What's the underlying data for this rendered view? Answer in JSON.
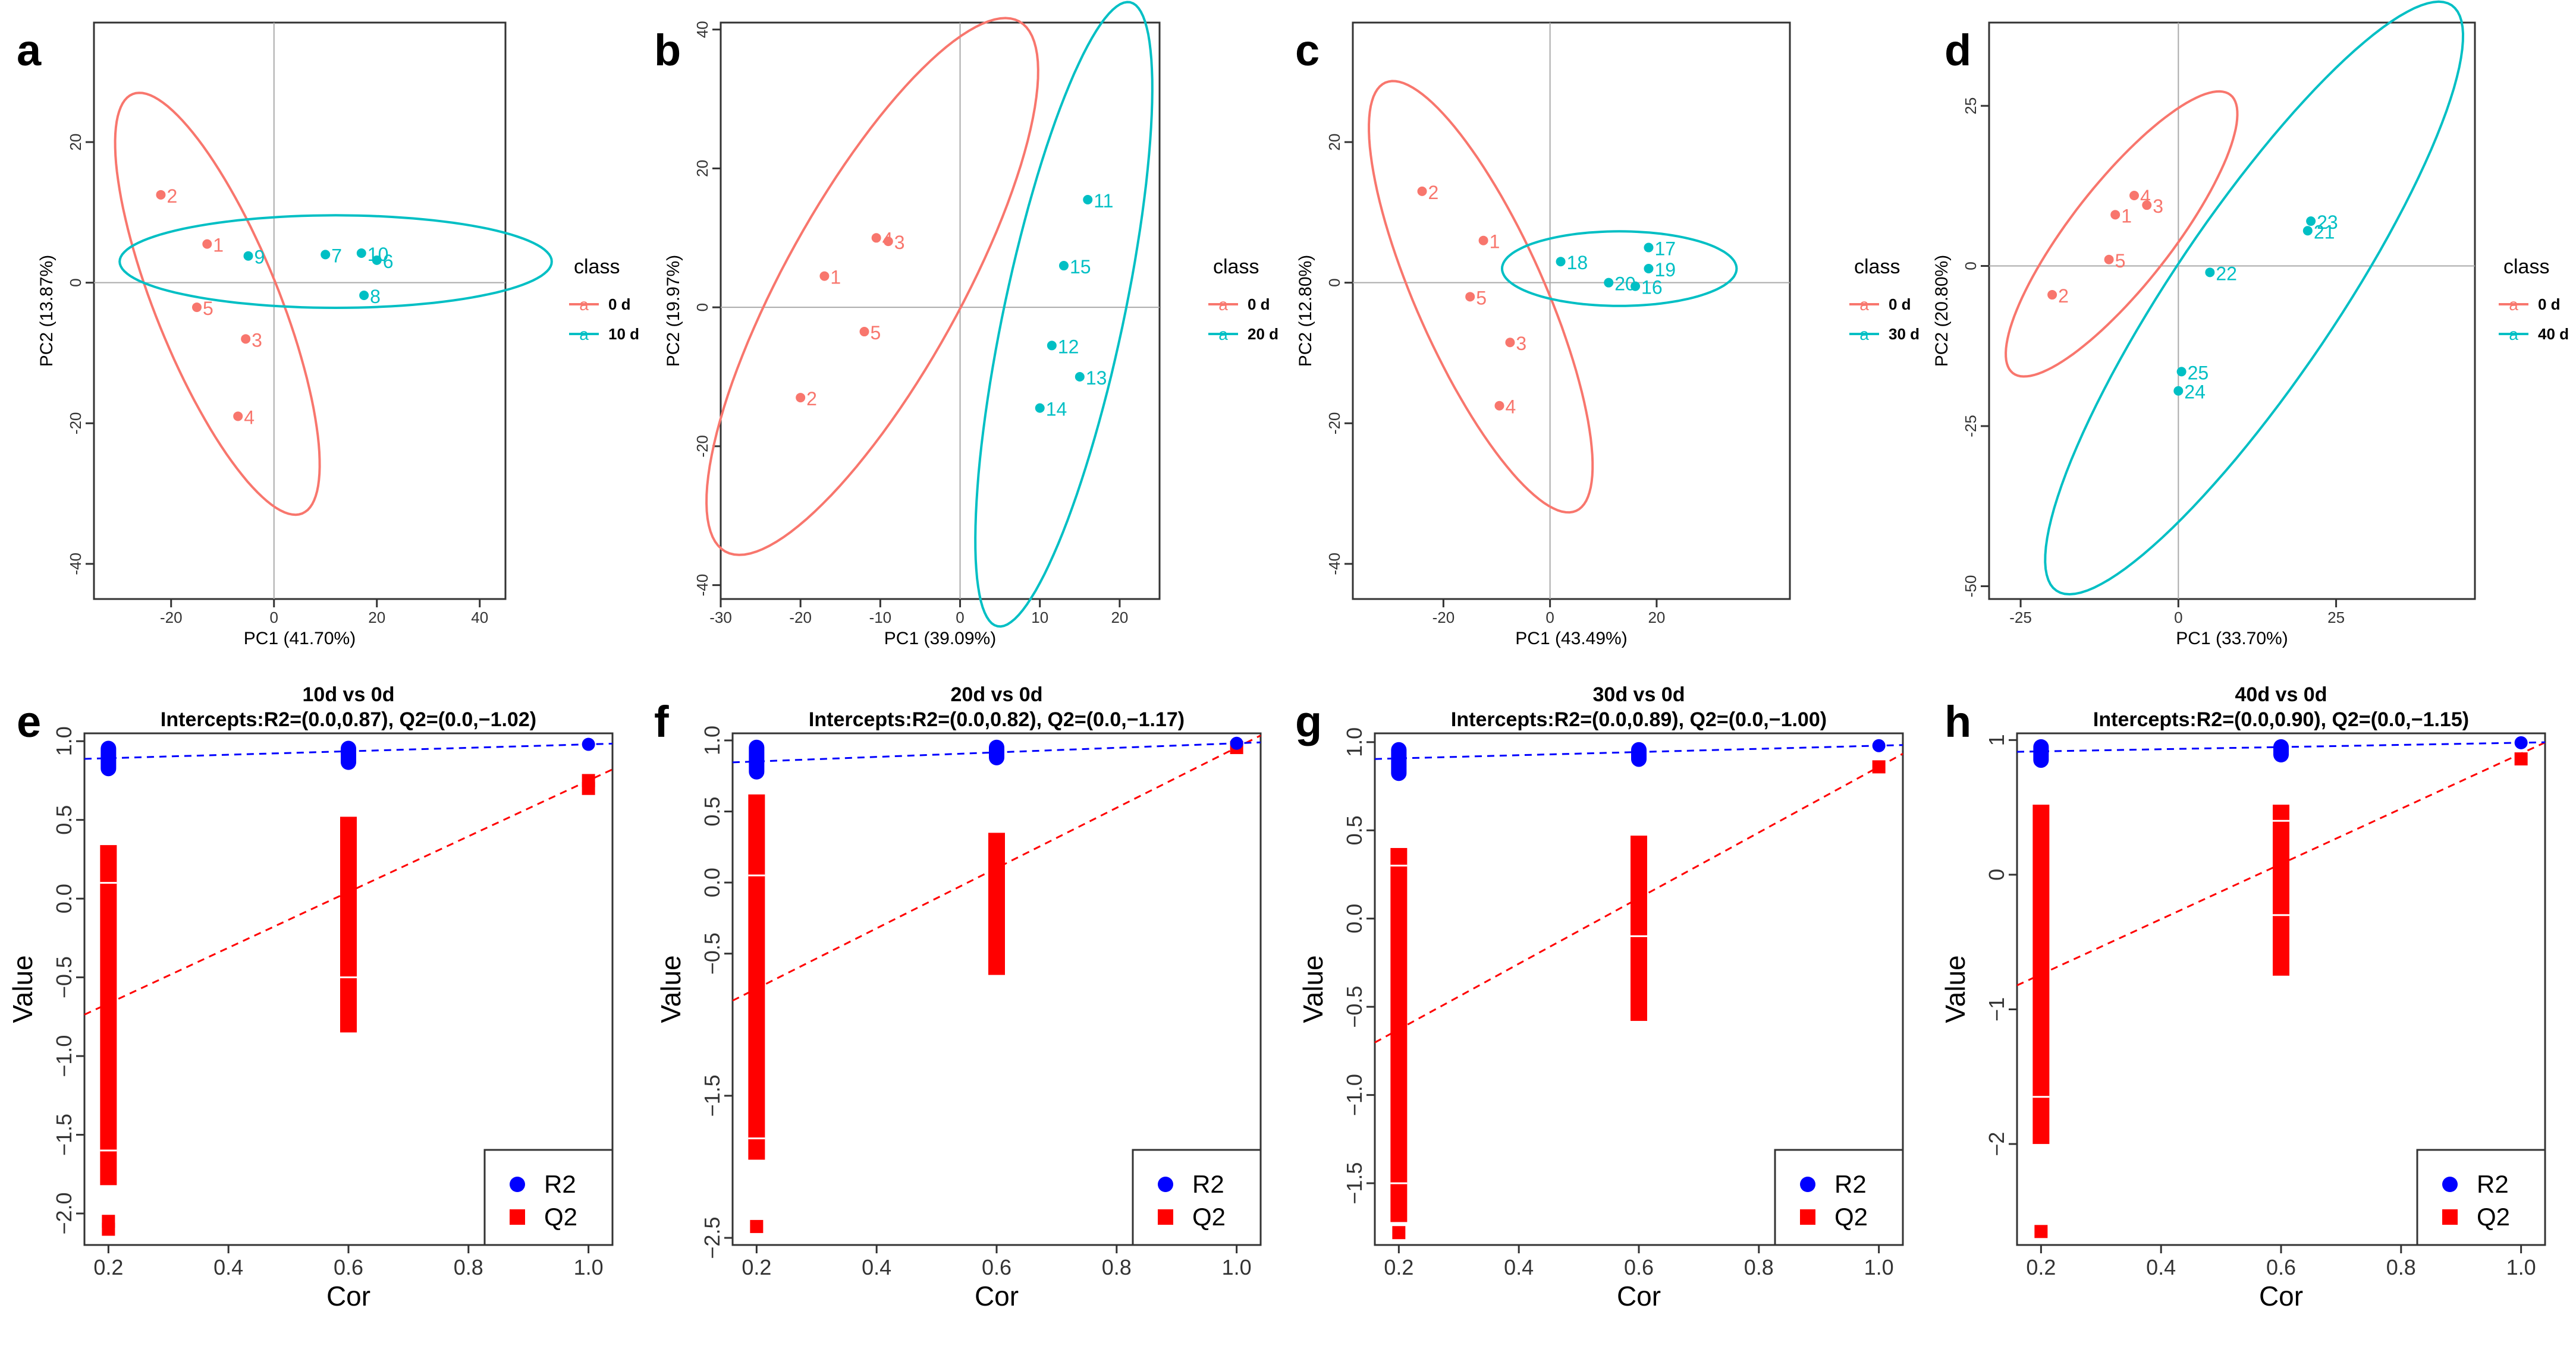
{
  "colors": {
    "group_a": "#F8766D",
    "group_b": "#00BFC4",
    "r2": "#0000FF",
    "q2": "#FF0000",
    "axis": "#333333",
    "grid": "#AAAAAA"
  },
  "chart_data": [
    {
      "panel": "a",
      "type": "scatter",
      "xlabel": "PC1 (41.70%)",
      "ylabel": "PC2 (13.87%)",
      "xlim": [
        -35,
        45
      ],
      "ylim": [
        -45,
        37
      ],
      "xticks": [
        -20,
        0,
        20,
        40
      ],
      "yticks": [
        -40,
        -20,
        0,
        20
      ],
      "legend_title": "class",
      "series": [
        {
          "name": "0 d",
          "color_key": "group_a",
          "points": [
            {
              "x": -22,
              "y": 12.5,
              "label": "2"
            },
            {
              "x": -13,
              "y": 5.5,
              "label": "1"
            },
            {
              "x": -15,
              "y": -3.5,
              "label": "5"
            },
            {
              "x": -5.5,
              "y": -8,
              "label": "3"
            },
            {
              "x": -7,
              "y": -19,
              "label": "4"
            }
          ],
          "ellipse": {
            "cx": -11,
            "cy": -3,
            "rx": 44,
            "ry": 12,
            "angle": -68
          }
        },
        {
          "name": "10 d",
          "color_key": "group_b",
          "points": [
            {
              "x": -5,
              "y": 3.8,
              "label": "9"
            },
            {
              "x": 10,
              "y": 4,
              "label": "7"
            },
            {
              "x": 17,
              "y": 4.2,
              "label": "10"
            },
            {
              "x": 20,
              "y": 3.2,
              "label": "6"
            },
            {
              "x": 17.5,
              "y": -1.8,
              "label": "8"
            }
          ],
          "ellipse": {
            "cx": 12,
            "cy": 3,
            "rx": 42,
            "ry": 9,
            "angle": 0
          }
        }
      ]
    },
    {
      "panel": "b",
      "type": "scatter",
      "xlabel": "PC1 (39.09%)",
      "ylabel": "PC2 (19.97%)",
      "xlim": [
        -30,
        25
      ],
      "ylim": [
        -42,
        41
      ],
      "xticks": [
        -30,
        -20,
        -10,
        0,
        10,
        20
      ],
      "yticks": [
        -40,
        -20,
        0,
        20,
        40
      ],
      "legend_title": "class",
      "series": [
        {
          "name": "0 d",
          "color_key": "group_a",
          "points": [
            {
              "x": -10.5,
              "y": 10,
              "label": "4"
            },
            {
              "x": -9,
              "y": 9.5,
              "label": "3"
            },
            {
              "x": -17,
              "y": 4.5,
              "label": "1"
            },
            {
              "x": -12,
              "y": -3.5,
              "label": "5"
            },
            {
              "x": -20,
              "y": -13,
              "label": "2"
            }
          ],
          "ellipse": {
            "cx": -11,
            "cy": 3,
            "rx": 38,
            "ry": 11,
            "angle": 61
          }
        },
        {
          "name": "20 d",
          "color_key": "group_b",
          "points": [
            {
              "x": 16,
              "y": 15.5,
              "label": "11"
            },
            {
              "x": 13,
              "y": 6,
              "label": "15"
            },
            {
              "x": 11.5,
              "y": -5.5,
              "label": "12"
            },
            {
              "x": 15,
              "y": -10,
              "label": "13"
            },
            {
              "x": 10,
              "y": -14.5,
              "label": "14"
            }
          ],
          "ellipse": {
            "cx": 13,
            "cy": -1,
            "rx": 40,
            "ry": 7.5,
            "angle": 78
          }
        }
      ]
    },
    {
      "panel": "c",
      "type": "scatter",
      "xlabel": "PC1 (43.49%)",
      "ylabel": "PC2 (12.80%)",
      "xlim": [
        -37,
        45
      ],
      "ylim": [
        -45,
        37
      ],
      "xticks": [
        -20,
        0,
        20
      ],
      "yticks": [
        -40,
        -20,
        0,
        20
      ],
      "legend_title": "class",
      "series": [
        {
          "name": "0 d",
          "color_key": "group_a",
          "points": [
            {
              "x": -24,
              "y": 13,
              "label": "2"
            },
            {
              "x": -12.5,
              "y": 6,
              "label": "1"
            },
            {
              "x": -15,
              "y": -2,
              "label": "5"
            },
            {
              "x": -7.5,
              "y": -8.5,
              "label": "3"
            },
            {
              "x": -9.5,
              "y": -17.5,
              "label": "4"
            }
          ],
          "ellipse": {
            "cx": -13,
            "cy": -2,
            "rx": 44,
            "ry": 12,
            "angle": -66
          }
        },
        {
          "name": "30 d",
          "color_key": "group_b",
          "points": [
            {
              "x": 2,
              "y": 3,
              "label": "18"
            },
            {
              "x": 18.5,
              "y": 5,
              "label": "17"
            },
            {
              "x": 18.5,
              "y": 2,
              "label": "19"
            },
            {
              "x": 11,
              "y": 0,
              "label": "20"
            },
            {
              "x": 16,
              "y": -0.5,
              "label": "16"
            }
          ],
          "ellipse": {
            "cx": 13,
            "cy": 2,
            "rx": 22,
            "ry": 7,
            "angle": 0
          }
        }
      ]
    },
    {
      "panel": "d",
      "type": "scatter",
      "xlabel": "PC1 (33.70%)",
      "ylabel": "PC2 (20.80%)",
      "xlim": [
        -30,
        47
      ],
      "ylim": [
        -52,
        38
      ],
      "xticks": [
        -25,
        0,
        25
      ],
      "yticks": [
        -50,
        -25,
        0,
        25
      ],
      "legend_title": "class",
      "series": [
        {
          "name": "0 d",
          "color_key": "group_a",
          "points": [
            {
              "x": -7,
              "y": 11,
              "label": "4"
            },
            {
              "x": -5,
              "y": 9.5,
              "label": "3"
            },
            {
              "x": -10,
              "y": 8,
              "label": "1"
            },
            {
              "x": -11,
              "y": 1,
              "label": "5"
            },
            {
              "x": -20,
              "y": -4.5,
              "label": "2"
            }
          ],
          "ellipse": {
            "cx": -9,
            "cy": 5,
            "rx": 28,
            "ry": 8,
            "angle": 52
          }
        },
        {
          "name": "40 d",
          "color_key": "group_b",
          "points": [
            {
              "x": 21,
              "y": 7,
              "label": "23"
            },
            {
              "x": 20.5,
              "y": 5.5,
              "label": "21"
            },
            {
              "x": 5,
              "y": -1,
              "label": "22"
            },
            {
              "x": 0.5,
              "y": -16.5,
              "label": "25"
            },
            {
              "x": 0,
              "y": -19.5,
              "label": "24"
            }
          ],
          "ellipse": {
            "cx": 12,
            "cy": -5,
            "rx": 56,
            "ry": 13,
            "angle": 56
          }
        }
      ]
    },
    {
      "panel": "e",
      "type": "scatter",
      "title": "10d vs 0d",
      "subtitle": "Intercepts:R2=(0.0,0.87), Q2=(0.0,−1.02)",
      "xlabel": "Cor",
      "ylabel": "Value",
      "xlim": [
        0.16,
        1.04
      ],
      "ylim": [
        -2.2,
        1.05
      ],
      "xticks": [
        0.2,
        0.4,
        0.6,
        0.8,
        1.0
      ],
      "xtick_labels": [
        "0.2",
        "0.4",
        "0.6",
        "0.8",
        "1.0"
      ],
      "yticks": [
        -2.0,
        -1.5,
        -1.0,
        -0.5,
        0.0,
        0.5,
        1.0
      ],
      "ytick_labels": [
        "−2.0",
        "−1.5",
        "−1.0",
        "−0.5",
        "0.0",
        "0.5",
        "1.0"
      ],
      "legend": [
        "R2",
        "Q2"
      ],
      "r2": {
        "bars": [
          [
            0.2,
            0.8,
            0.98
          ],
          [
            0.6,
            0.84,
            0.98
          ]
        ],
        "point": [
          1.0,
          0.98
        ],
        "line": {
          "intercept": 0.87,
          "slope": 0.11
        }
      },
      "q2": {
        "bars": [
          [
            0.2,
            -1.82,
            0.34
          ],
          [
            0.6,
            -0.85,
            0.52
          ]
        ],
        "extra": [
          [
            0.2,
            -2.05
          ],
          [
            0.2,
            -2.1
          ],
          [
            1.0,
            0.75
          ],
          [
            1.0,
            0.7
          ]
        ],
        "gaps": [
          [
            0.2,
            -1.6
          ],
          [
            0.2,
            0.1
          ],
          [
            0.6,
            -0.5
          ]
        ],
        "line": {
          "intercept": -1.02,
          "slope": 1.77
        }
      }
    },
    {
      "panel": "f",
      "type": "scatter",
      "title": "20d vs 0d",
      "subtitle": "Intercepts:R2=(0.0,0.82), Q2=(0.0,−1.17)",
      "xlabel": "Cor",
      "ylabel": "Value",
      "xlim": [
        0.16,
        1.04
      ],
      "ylim": [
        -2.55,
        1.05
      ],
      "xticks": [
        0.2,
        0.4,
        0.6,
        0.8,
        1.0
      ],
      "xtick_labels": [
        "0.2",
        "0.4",
        "0.6",
        "0.8",
        "1.0"
      ],
      "yticks": [
        -2.5,
        -1.5,
        -0.5,
        0.0,
        0.5,
        1.0
      ],
      "ytick_labels": [
        "−2.5",
        "−1.5",
        "−0.5",
        "0.0",
        "0.5",
        "1.0"
      ],
      "legend": [
        "R2",
        "Q2"
      ],
      "r2": {
        "bars": [
          [
            0.2,
            0.75,
            0.98
          ],
          [
            0.6,
            0.85,
            0.98
          ]
        ],
        "point": [
          1.0,
          0.98
        ],
        "line": {
          "intercept": 0.82,
          "slope": 0.16
        }
      },
      "q2": {
        "bars": [
          [
            0.2,
            -1.95,
            0.62
          ],
          [
            0.6,
            -0.65,
            0.35
          ]
        ],
        "extra": [
          [
            0.2,
            -2.42
          ],
          [
            1.0,
            0.95
          ]
        ],
        "gaps": [
          [
            0.2,
            -1.8
          ],
          [
            0.2,
            0.05
          ]
        ],
        "line": {
          "intercept": -1.17,
          "slope": 2.12
        }
      }
    },
    {
      "panel": "g",
      "type": "scatter",
      "title": "30d vs 0d",
      "subtitle": "Intercepts:R2=(0.0,0.89), Q2=(0.0,−1.00)",
      "xlabel": "Cor",
      "ylabel": "Value",
      "xlim": [
        0.16,
        1.04
      ],
      "ylim": [
        -1.85,
        1.05
      ],
      "xticks": [
        0.2,
        0.4,
        0.6,
        0.8,
        1.0
      ],
      "xtick_labels": [
        "0.2",
        "0.4",
        "0.6",
        "0.8",
        "1.0"
      ],
      "yticks": [
        -1.5,
        -1.0,
        -0.5,
        0.0,
        0.5,
        1.0
      ],
      "ytick_labels": [
        "−1.5",
        "−1.0",
        "−0.5",
        "0.0",
        "0.5",
        "1.0"
      ],
      "legend": [
        "R2",
        "Q2"
      ],
      "r2": {
        "bars": [
          [
            0.2,
            0.8,
            0.98
          ],
          [
            0.6,
            0.88,
            0.98
          ]
        ],
        "point": [
          1.0,
          0.98
        ],
        "line": {
          "intercept": 0.89,
          "slope": 0.09
        }
      },
      "q2": {
        "bars": [
          [
            0.2,
            -1.72,
            0.4
          ],
          [
            0.6,
            -0.58,
            0.47
          ]
        ],
        "extra": [
          [
            0.2,
            -1.78
          ],
          [
            1.0,
            0.86
          ]
        ],
        "gaps": [
          [
            0.2,
            -1.5
          ],
          [
            0.2,
            0.3
          ],
          [
            0.6,
            -0.1
          ]
        ],
        "line": {
          "intercept": -1.0,
          "slope": 1.86
        }
      }
    },
    {
      "panel": "h",
      "type": "scatter",
      "title": "40d vs 0d",
      "subtitle": "Intercepts:R2=(0.0,0.90), Q2=(0.0,−1.15)",
      "xlabel": "Cor",
      "ylabel": "Value",
      "xlim": [
        0.16,
        1.04
      ],
      "ylim": [
        -2.75,
        1.05
      ],
      "xticks": [
        0.2,
        0.4,
        0.6,
        0.8,
        1.0
      ],
      "xtick_labels": [
        "0.2",
        "0.4",
        "0.6",
        "0.8",
        "1.0"
      ],
      "yticks": [
        -2,
        -1,
        0,
        1
      ],
      "ytick_labels": [
        "−2",
        "−1",
        "0",
        "1"
      ],
      "legend": [
        "R2",
        "Q2"
      ],
      "r2": {
        "bars": [
          [
            0.2,
            0.82,
            0.98
          ],
          [
            0.6,
            0.86,
            0.98
          ]
        ],
        "point": [
          1.0,
          0.98
        ],
        "line": {
          "intercept": 0.9,
          "slope": 0.08
        }
      },
      "q2": {
        "bars": [
          [
            0.2,
            -2.0,
            0.52
          ],
          [
            0.6,
            -0.75,
            0.52
          ]
        ],
        "extra": [
          [
            0.2,
            -2.65
          ],
          [
            1.0,
            0.86
          ]
        ],
        "gaps": [
          [
            0.2,
            -1.65
          ],
          [
            0.6,
            -0.3
          ],
          [
            0.6,
            0.4
          ]
        ],
        "line": {
          "intercept": -1.15,
          "slope": 2.05
        }
      }
    }
  ]
}
